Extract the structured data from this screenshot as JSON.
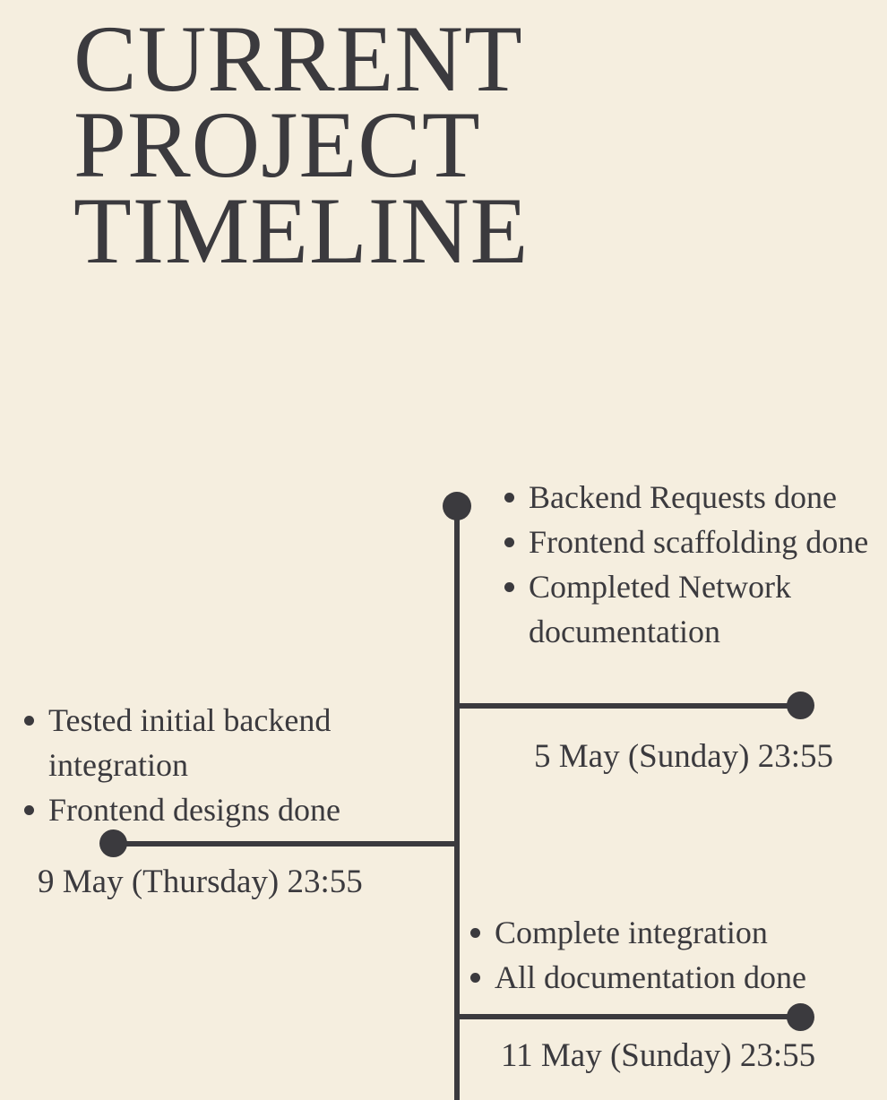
{
  "title": {
    "line1": "CURRENT",
    "line2": "PROJECT",
    "line3": "TIMELINE"
  },
  "milestones": [
    {
      "date": "5 May (Sunday) 23:55",
      "items": [
        "Backend Requests done",
        "Frontend scaffolding done",
        "Completed Network documentation"
      ]
    },
    {
      "date": "9 May (Thursday) 23:55",
      "items": [
        "Tested initial backend integration",
        "Frontend designs done"
      ]
    },
    {
      "date": "11 May (Sunday) 23:55",
      "items": [
        "Complete integration",
        "All documentation done"
      ]
    }
  ],
  "colors": {
    "background": "#f5eedf",
    "ink": "#3b3a3e"
  }
}
